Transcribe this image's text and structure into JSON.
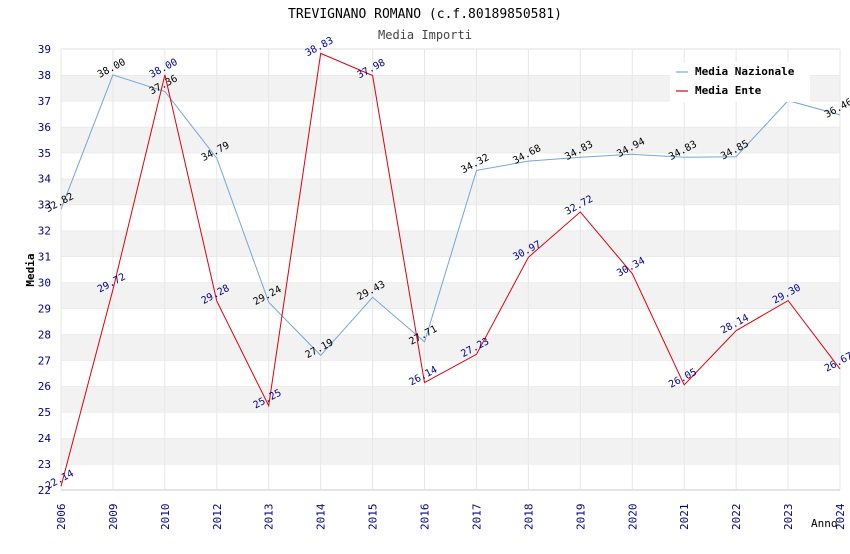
{
  "chart_data": {
    "type": "line",
    "title": "TREVIGNANO ROMANO (c.f.80189850581)",
    "subtitle": "Media Importi",
    "xlabel": "Anno",
    "ylabel": "Media",
    "ylim": [
      22,
      39
    ],
    "yticks": [
      "22",
      "23",
      "24",
      "25",
      "26",
      "27",
      "28",
      "29",
      "30",
      "31",
      "32",
      "33",
      "34",
      "35",
      "36",
      "37",
      "38",
      "39"
    ],
    "categories": [
      "2006",
      "2009",
      "2010",
      "2012",
      "2013",
      "2014",
      "2015",
      "2016",
      "2017",
      "2018",
      "2019",
      "2020",
      "2021",
      "2022",
      "2023",
      "2024"
    ],
    "grid": "horizontal bands",
    "legend_position": "top-right",
    "series": [
      {
        "name": "Media Nazionale",
        "color": "#6fa8dc",
        "values": [
          32.82,
          38.0,
          37.36,
          34.79,
          29.24,
          27.19,
          29.43,
          27.71,
          34.32,
          34.68,
          34.83,
          34.94,
          34.83,
          34.85,
          37.01,
          36.46
        ],
        "labels": [
          "32.82",
          "38.00",
          "37.36",
          "34.79",
          "29.24",
          "27.19",
          "29.43",
          "27.71",
          "34.32",
          "34.68",
          "34.83",
          "34.94",
          "34.83",
          "34.85",
          "",
          "36.46"
        ]
      },
      {
        "name": "Media Ente",
        "color": "#e0000b",
        "values": [
          22.14,
          29.72,
          38.0,
          29.28,
          25.25,
          38.83,
          37.98,
          26.14,
          27.23,
          30.97,
          32.72,
          30.34,
          26.05,
          28.14,
          29.3,
          26.67
        ],
        "labels": [
          "22.14",
          "29.72",
          "38.00",
          "29.28",
          "25.25",
          "38.83",
          "37.98",
          "26.14",
          "27.23",
          "30.97",
          "32.72",
          "30.34",
          "26.05",
          "28.14",
          "29.30",
          "26.67"
        ]
      }
    ]
  }
}
